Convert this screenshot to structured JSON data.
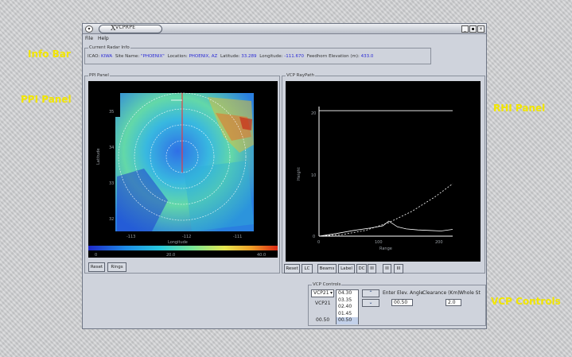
{
  "callouts": {
    "info_bar": "Info Bar",
    "ppi_panel": "PPI Panel",
    "rhi_panel": "RHI Panel",
    "vcp_controls": "VCP Controls"
  },
  "window": {
    "title": "VCPRPE",
    "menu": {
      "file": "File",
      "help": "Help"
    }
  },
  "info_bar": {
    "group_title": "Current Radar Info",
    "icao_label": "ICAO:",
    "icao_value": "KIWA",
    "site_label": "Site Name:",
    "site_value": "\"PHOENIX\"",
    "location_label": "Location:",
    "location_value": "PHOENIX, AZ",
    "latitude_label": "Latitude:",
    "latitude_value": "33.289",
    "longitude_label": "Longitude:",
    "longitude_value": "-111.670",
    "elevation_label": "Feedhorn Elevation (m):",
    "elevation_value": "433.0"
  },
  "ppi": {
    "group_title": "PPI Panel",
    "xlabel": "Longitude",
    "xticks": [
      "-113",
      "-112",
      "-111"
    ],
    "yticks": [
      "35",
      "34",
      "33",
      "32"
    ],
    "ylabel": "Latitude",
    "colorbar_ticks": [
      "0",
      "20.0",
      "40.0"
    ],
    "buttons": {
      "reset": "Reset",
      "rings": "Rings"
    }
  },
  "rhi": {
    "group_title": "VCP RayPath",
    "xlabel": "Range",
    "ylabel": "Height",
    "xticks": [
      "0",
      "100",
      "200"
    ],
    "yticks": [
      "20",
      "10",
      "0"
    ],
    "buttons": {
      "reset": "Reset",
      "lc": "LC",
      "beams": "Beams",
      "label": "Label",
      "dc": "DC",
      "b1": "III",
      "b2": "III",
      "b3": "III"
    }
  },
  "vcp": {
    "group_title": "VCP Controls",
    "selected_vcp": "VCP21",
    "vcp_label": "VCP21",
    "elevations": [
      "04.30",
      "03.35",
      "02.40",
      "01.45",
      "00.50"
    ],
    "selected_elevation": "00.50",
    "angle_label": "Enter Elev. Angle",
    "angle_value": "00.50",
    "clearance_label": "Clearance (Km)",
    "clearance_value": "2.0",
    "extra_label": "Whole St"
  },
  "colors": {
    "accent_blue": "#2b2bd6",
    "callout_yellow": "#f2e600",
    "plot_bg": "#000000"
  },
  "chart_data": [
    {
      "type": "heatmap",
      "xlabel": "Longitude",
      "ylabel": "Latitude",
      "x_ticks": [
        "-113",
        "-112",
        "-111"
      ],
      "y_ticks": [
        "35",
        "34",
        "33",
        "32"
      ],
      "colorbar_ticks": [
        "0",
        "20.0",
        "40.0"
      ],
      "colormap": [
        "#1e28c8",
        "#1e8ce6",
        "#28c8dc",
        "#78e696",
        "#e6e650",
        "#f0a028",
        "#dc2814"
      ]
    },
    {
      "type": "line",
      "xlabel": "Range",
      "ylabel": "Height",
      "xlim": [
        0,
        230
      ],
      "ylim": [
        0,
        25
      ],
      "x_ticks": [
        "0",
        "100",
        "200"
      ],
      "y_ticks": [
        "20",
        "10",
        "0"
      ],
      "series": [
        {
          "x": [
            0,
            40,
            80,
            120,
            160,
            200,
            230
          ],
          "y": [
            0,
            0.3,
            1.1,
            2.6,
            4.8,
            7.6,
            10.1
          ]
        },
        {
          "x": [
            0,
            230
          ],
          "y": [
            24.2,
            24.2
          ]
        },
        {
          "x": [
            0,
            30,
            60,
            90,
            110,
            120,
            135,
            150,
            170,
            190,
            210,
            230
          ],
          "y": [
            0,
            0.5,
            1.1,
            1.6,
            2.0,
            2.9,
            1.8,
            1.4,
            1.2,
            1.1,
            1.0,
            1.3
          ]
        }
      ]
    }
  ]
}
